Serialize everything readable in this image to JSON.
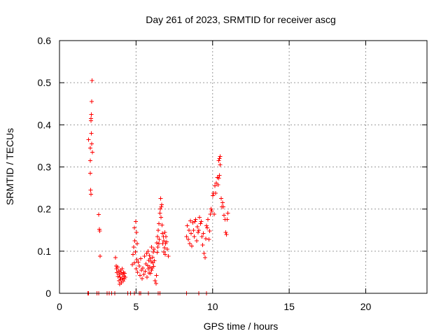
{
  "chart_data": {
    "type": "scatter",
    "title": "Day 261 of 2023, SRMTID for receiver ascg",
    "xlabel": "GPS time / hours",
    "ylabel": "SRMTID / TECUs",
    "xlim": [
      0,
      24
    ],
    "ylim": [
      0,
      0.6
    ],
    "xticks": [
      0,
      5,
      10,
      15,
      20
    ],
    "yticks": [
      0,
      0.1,
      0.2,
      0.3,
      0.4,
      0.5,
      0.6
    ],
    "xtick_labels": [
      "0",
      "5",
      "10",
      "15",
      "20"
    ],
    "ytick_labels": [
      "0",
      "0.1",
      "0.2",
      "0.3",
      "0.4",
      "0.5",
      "0.6"
    ],
    "grid": true,
    "marker": "+",
    "series": [
      {
        "name": "SRMTID",
        "color": "#ff0000",
        "x": [
          1.85,
          1.9,
          2.0,
          2.0,
          2.02,
          2.03,
          2.05,
          2.05,
          2.06,
          2.07,
          2.08,
          2.1,
          2.1,
          2.12,
          2.15,
          2.55,
          2.6,
          2.62,
          2.65,
          1.9,
          2.45,
          2.55,
          3.1,
          3.25,
          3.4,
          3.6,
          3.65,
          3.7,
          3.72,
          3.75,
          3.8,
          3.82,
          3.85,
          3.88,
          3.9,
          3.92,
          3.95,
          3.98,
          4.0,
          4.02,
          4.05,
          4.08,
          4.1,
          4.12,
          4.15,
          4.18,
          4.2,
          4.22,
          4.25,
          4.3,
          4.45,
          4.65,
          4.75,
          4.8,
          4.85,
          4.88,
          4.9,
          4.92,
          4.95,
          4.98,
          5.0,
          5.02,
          5.05,
          5.08,
          5.1,
          5.15,
          5.2,
          5.25,
          5.3,
          5.35,
          5.4,
          5.45,
          5.5,
          5.55,
          5.6,
          5.65,
          5.7,
          5.72,
          5.75,
          5.78,
          5.8,
          5.82,
          5.85,
          5.88,
          5.9,
          5.92,
          5.95,
          5.98,
          6.0,
          6.02,
          6.05,
          6.08,
          6.1,
          6.12,
          6.15,
          6.18,
          6.2,
          6.25,
          6.3,
          6.32,
          6.35,
          6.38,
          6.4,
          6.42,
          6.45,
          6.48,
          6.5,
          6.52,
          6.55,
          6.58,
          6.6,
          6.62,
          6.65,
          6.68,
          6.7,
          6.72,
          6.75,
          6.78,
          6.8,
          6.82,
          6.85,
          6.88,
          6.9,
          6.92,
          6.95,
          7.0,
          7.05,
          7.1,
          4.9,
          5.2,
          5.3,
          5.8,
          6.45,
          6.55,
          8.3,
          8.3,
          8.35,
          8.4,
          8.45,
          8.5,
          8.55,
          8.6,
          8.65,
          8.7,
          8.75,
          8.8,
          8.85,
          8.9,
          8.95,
          9.0,
          9.05,
          9.1,
          9.15,
          9.2,
          9.25,
          9.3,
          9.35,
          9.4,
          9.45,
          9.5,
          9.55,
          9.6,
          9.65,
          9.7,
          9.75,
          9.8,
          9.85,
          9.9,
          9.95,
          10.0,
          10.05,
          10.1,
          10.15,
          10.2,
          10.25,
          10.3,
          10.35,
          10.4,
          10.45,
          10.5,
          10.55,
          10.6,
          10.65,
          10.7,
          10.75,
          10.8,
          10.85,
          10.9,
          10.95,
          11.0,
          10.4,
          10.45,
          10.5,
          9.1,
          9.6
        ],
        "y": [
          0.0,
          0.365,
          0.345,
          0.315,
          0.285,
          0.245,
          0.235,
          0.415,
          0.41,
          0.425,
          0.38,
          0.355,
          0.455,
          0.505,
          0.335,
          0.187,
          0.152,
          0.148,
          0.088,
          0.0,
          0.0,
          0.0,
          0.0,
          0.0,
          0.0,
          0.0,
          0.085,
          0.065,
          0.058,
          0.049,
          0.062,
          0.04,
          0.052,
          0.03,
          0.046,
          0.022,
          0.038,
          0.055,
          0.032,
          0.048,
          0.025,
          0.058,
          0.036,
          0.045,
          0.029,
          0.05,
          0.041,
          0.034,
          0.047,
          0.038,
          0.0,
          0.0,
          0.068,
          0.092,
          0.11,
          0.155,
          0.072,
          0.125,
          0.098,
          0.17,
          0.058,
          0.145,
          0.08,
          0.118,
          0.05,
          0.074,
          0.065,
          0.042,
          0.082,
          0.055,
          0.035,
          0.06,
          0.045,
          0.088,
          0.052,
          0.07,
          0.095,
          0.038,
          0.066,
          0.1,
          0.058,
          0.078,
          0.048,
          0.09,
          0.062,
          0.082,
          0.047,
          0.075,
          0.055,
          0.11,
          0.06,
          0.086,
          0.072,
          0.098,
          0.064,
          0.105,
          0.077,
          0.03,
          0.023,
          0.042,
          0.12,
          0.097,
          0.135,
          0.11,
          0.15,
          0.118,
          0.165,
          0.128,
          0.19,
          0.2,
          0.225,
          0.18,
          0.205,
          0.21,
          0.162,
          0.142,
          0.118,
          0.135,
          0.098,
          0.125,
          0.108,
          0.145,
          0.092,
          0.118,
          0.135,
          0.122,
          0.105,
          0.088,
          0.0,
          0.0,
          0.0,
          0.0,
          0.0,
          0.0,
          0.0,
          0.135,
          0.16,
          0.128,
          0.15,
          0.118,
          0.172,
          0.142,
          0.112,
          0.168,
          0.15,
          0.135,
          0.17,
          0.175,
          0.125,
          0.158,
          0.145,
          0.15,
          0.18,
          0.165,
          0.17,
          0.135,
          0.115,
          0.142,
          0.095,
          0.085,
          0.13,
          0.16,
          0.155,
          0.175,
          0.128,
          0.148,
          0.188,
          0.2,
          0.195,
          0.232,
          0.238,
          0.188,
          0.255,
          0.238,
          0.262,
          0.275,
          0.258,
          0.315,
          0.32,
          0.305,
          0.225,
          0.205,
          0.215,
          0.205,
          0.185,
          0.175,
          0.145,
          0.14,
          0.175,
          0.19,
          0.273,
          0.28,
          0.325,
          0.0,
          0.0
        ]
      }
    ]
  }
}
